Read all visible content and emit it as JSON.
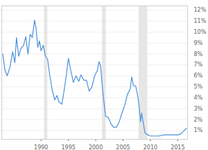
{
  "chart_data": {
    "type": "line",
    "color": "#4a90d9",
    "grid": true,
    "x": [
      1983.0,
      1983.4,
      1983.8,
      1984.3,
      1984.8,
      1985.2,
      1985.5,
      1985.9,
      1986.3,
      1986.8,
      1987.2,
      1987.6,
      1988.0,
      1988.4,
      1988.8,
      1989.1,
      1989.4,
      1989.7,
      1990.0,
      1990.4,
      1990.8,
      1991.2,
      1991.6,
      1992.0,
      1992.5,
      1992.9,
      1993.3,
      1993.8,
      1994.2,
      1994.6,
      1995.0,
      1995.4,
      1995.9,
      1996.4,
      1996.9,
      1997.3,
      1997.8,
      1998.3,
      1998.8,
      1999.3,
      1999.8,
      2000.3,
      2000.6,
      2000.9,
      2001.3,
      2001.8,
      2002.3,
      2002.8,
      2003.3,
      2003.8,
      2004.3,
      2004.8,
      2005.3,
      2005.8,
      2006.3,
      2006.6,
      2006.9,
      2007.3,
      2007.6,
      2007.9,
      2008.2,
      2008.4,
      2008.7,
      2009.0,
      2009.5,
      2010.0,
      2010.8,
      2011.5,
      2012.5,
      2013.5,
      2014.5,
      2015.0,
      2015.6,
      2016.0,
      2016.6
    ],
    "values": [
      8.0,
      6.5,
      6.0,
      6.8,
      8.2,
      7.2,
      9.5,
      7.8,
      8.5,
      8.8,
      9.6,
      8.0,
      9.8,
      9.5,
      11.1,
      10.3,
      8.6,
      9.2,
      8.3,
      8.8,
      7.8,
      7.5,
      6.0,
      4.8,
      3.8,
      4.2,
      3.6,
      3.4,
      4.6,
      6.0,
      7.6,
      6.6,
      5.4,
      6.0,
      5.5,
      6.1,
      5.6,
      5.6,
      4.6,
      5.0,
      6.0,
      6.5,
      7.3,
      6.9,
      4.5,
      2.3,
      2.2,
      1.6,
      1.3,
      1.3,
      1.8,
      2.6,
      3.3,
      4.3,
      4.8,
      5.9,
      5.1,
      5.1,
      4.4,
      3.4,
      1.8,
      2.6,
      1.7,
      0.8,
      0.6,
      0.5,
      0.5,
      0.5,
      0.6,
      0.6,
      0.6,
      0.6,
      0.7,
      0.9,
      1.2
    ],
    "recessions": [
      [
        1990.6,
        1991.2
      ],
      [
        2001.2,
        2001.9
      ],
      [
        2007.9,
        2009.5
      ]
    ],
    "xlim": [
      1982.8,
      2016.8
    ],
    "xticks": [
      1990,
      1995,
      2000,
      2005,
      2010,
      2015
    ],
    "ylim": [
      0.2,
      12.4
    ],
    "yticks": [
      {
        "value": 1,
        "label": "1%"
      },
      {
        "value": 2,
        "label": "2%"
      },
      {
        "value": 3,
        "label": "3%"
      },
      {
        "value": 4,
        "label": "4%"
      },
      {
        "value": 5,
        "label": "5%"
      },
      {
        "value": 6,
        "label": "6%"
      },
      {
        "value": 7,
        "label": "7%"
      },
      {
        "value": 8,
        "label": "8%"
      },
      {
        "value": 9,
        "label": "9%"
      },
      {
        "value": 10,
        "label": "10%"
      },
      {
        "value": 11,
        "label": "11%"
      },
      {
        "value": 12,
        "label": "12%"
      }
    ]
  }
}
